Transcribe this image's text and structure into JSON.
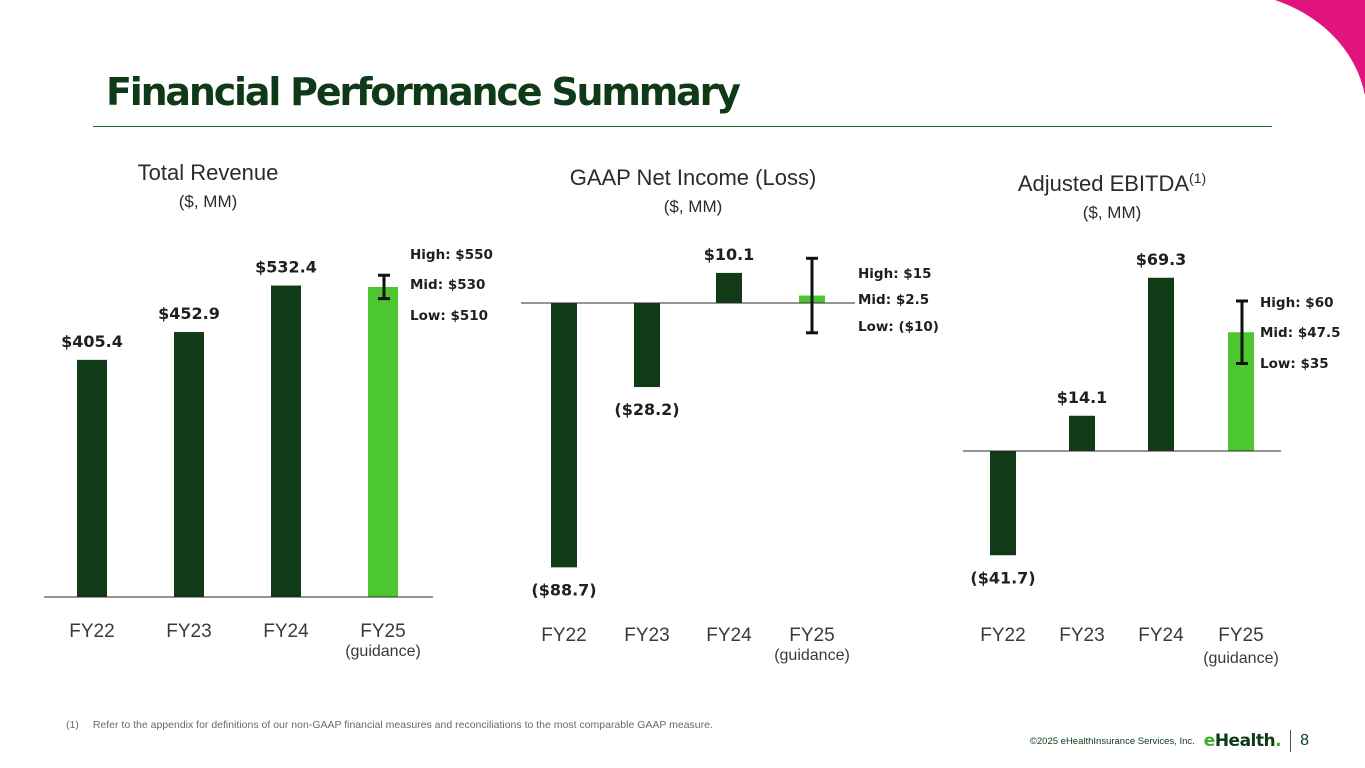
{
  "page": {
    "title": "Financial Performance Summary",
    "page_number": "8"
  },
  "footnote": {
    "marker": "(1)",
    "text": "Refer to the appendix for definitions of our non-GAAP financial measures and reconciliations to the most comparable GAAP measure."
  },
  "footer": {
    "copyright": "©2025 eHealthInsurance Services, Inc.",
    "logo_prefix": "e",
    "logo_rest": "Health",
    "logo_mark": "."
  },
  "colors": {
    "actual_bar": "#113a17",
    "guidance_bar": "#4cc72f",
    "accent_magenta": "#e0137f",
    "text_dark": "#0f3a17"
  },
  "chart_data": [
    {
      "type": "bar",
      "title": "Total Revenue",
      "title_sup": "",
      "subtitle": "($, MM)",
      "categories": [
        "FY22",
        "FY23",
        "FY24",
        "FY25"
      ],
      "category_sub": [
        "",
        "",
        "",
        "(guidance)"
      ],
      "values": [
        405.4,
        452.9,
        532.4,
        530
      ],
      "labels": [
        "$405.4",
        "$452.9",
        "$532.4",
        ""
      ],
      "guidance": {
        "high": 550,
        "mid": 530,
        "low": 510,
        "labels": [
          "High: $550",
          "Mid: $530",
          "Low: $510"
        ]
      }
    },
    {
      "type": "bar",
      "title": "GAAP Net Income (Loss)",
      "title_sup": "",
      "subtitle": "($, MM)",
      "categories": [
        "FY22",
        "FY23",
        "FY24",
        "FY25"
      ],
      "category_sub": [
        "",
        "",
        "",
        "(guidance)"
      ],
      "values": [
        -88.7,
        -28.2,
        10.1,
        2.5
      ],
      "labels": [
        "($88.7)",
        "($28.2)",
        "$10.1",
        ""
      ],
      "guidance": {
        "high": 15,
        "mid": 2.5,
        "low": -10,
        "labels": [
          "High: $15",
          "Mid: $2.5",
          "Low: ($10)"
        ]
      }
    },
    {
      "type": "bar",
      "title": "Adjusted EBITDA",
      "title_sup": "(1)",
      "subtitle": "($, MM)",
      "categories": [
        "FY22",
        "FY23",
        "FY24",
        "FY25"
      ],
      "category_sub": [
        "",
        "",
        "",
        "(guidance)"
      ],
      "values": [
        -41.7,
        14.1,
        69.3,
        47.5
      ],
      "labels": [
        "($41.7)",
        "$14.1",
        "$69.3",
        ""
      ],
      "guidance": {
        "high": 60,
        "mid": 47.5,
        "low": 35,
        "labels": [
          "High: $60",
          "Mid: $47.5",
          "Low: $35"
        ]
      }
    }
  ]
}
